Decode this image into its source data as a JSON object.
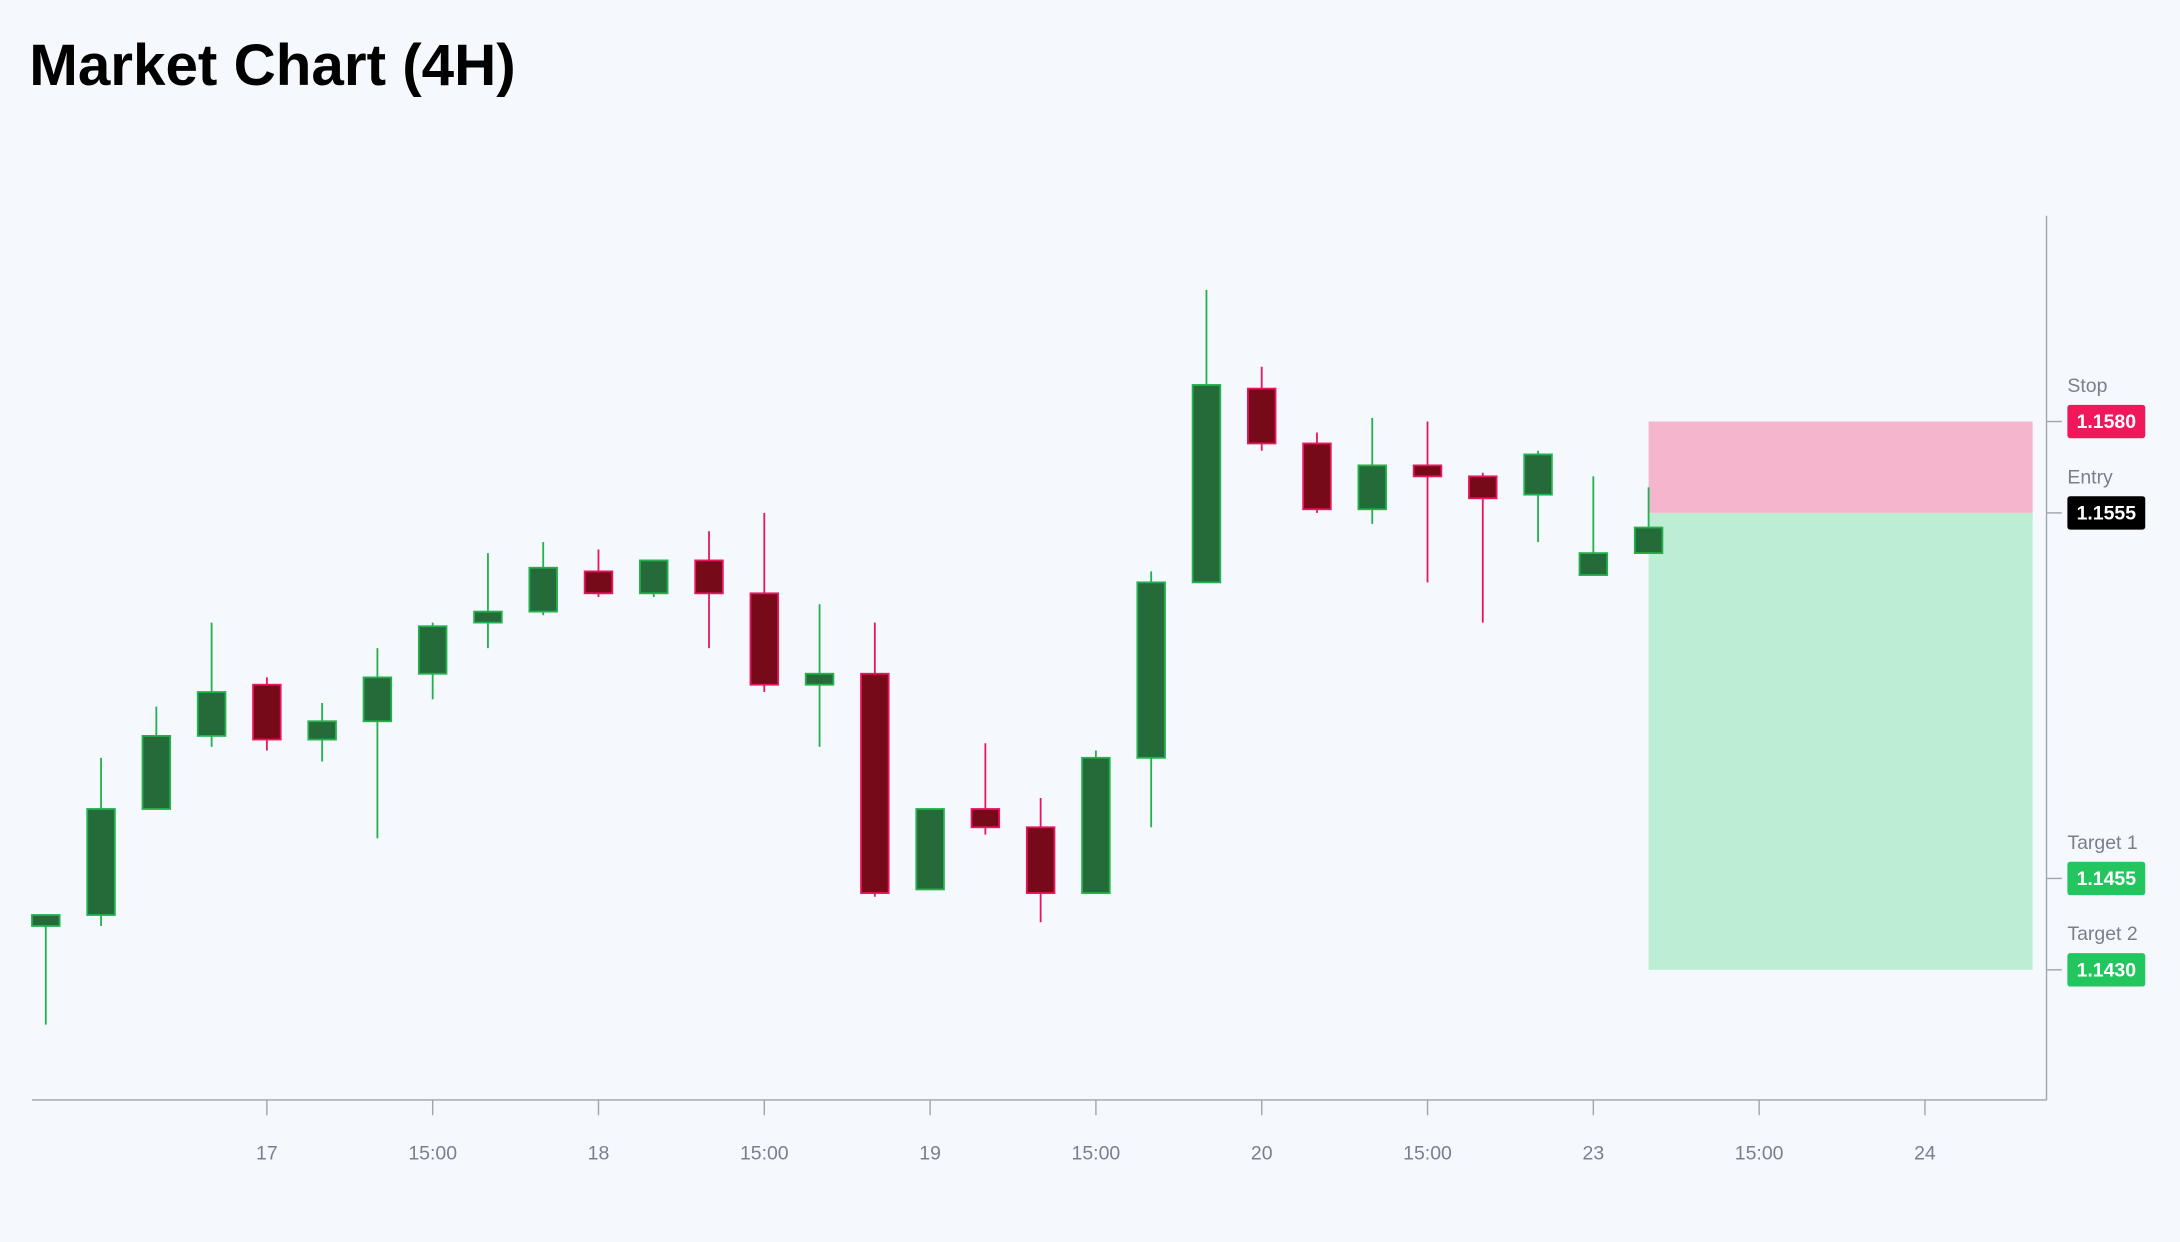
{
  "chart_data": {
    "type": "candlestick",
    "title": "Market Chart (4H)",
    "x": [
      0,
      1,
      2,
      3,
      4,
      5,
      6,
      7,
      8,
      9,
      10,
      11,
      12,
      13,
      14,
      15,
      16,
      17,
      18,
      19,
      20,
      21,
      22,
      23,
      24,
      25,
      26,
      27,
      28,
      29
    ],
    "open": [
      1.1442,
      1.1445,
      1.1474,
      1.1494,
      1.1508,
      1.1493,
      1.1498,
      1.1511,
      1.1525,
      1.1528,
      1.1539,
      1.1533,
      1.1542,
      1.1533,
      1.1508,
      1.1511,
      1.1452,
      1.1474,
      1.1469,
      1.1451,
      1.1488,
      1.1536,
      1.1589,
      1.1574,
      1.1556,
      1.1568,
      1.1565,
      1.156,
      1.1538,
      1.1544
    ],
    "high": [
      1.1445,
      1.1488,
      1.1502,
      1.1525,
      1.151,
      1.1503,
      1.1518,
      1.1525,
      1.1544,
      1.1547,
      1.1545,
      1.1542,
      1.155,
      1.1555,
      1.153,
      1.1525,
      1.1474,
      1.1492,
      1.1477,
      1.149,
      1.1539,
      1.1616,
      1.1595,
      1.1577,
      1.1581,
      1.158,
      1.1566,
      1.1572,
      1.1565,
      1.1562
    ],
    "low": [
      1.1415,
      1.1442,
      1.1474,
      1.1491,
      1.149,
      1.1487,
      1.1466,
      1.1504,
      1.1518,
      1.1527,
      1.1532,
      1.1532,
      1.1518,
      1.1506,
      1.1491,
      1.145,
      1.1452,
      1.1467,
      1.1443,
      1.1451,
      1.1469,
      1.1536,
      1.1572,
      1.1555,
      1.1552,
      1.1536,
      1.1525,
      1.1547,
      1.1538,
      1.1544
    ],
    "close": [
      1.1445,
      1.1474,
      1.1494,
      1.1506,
      1.1493,
      1.1498,
      1.151,
      1.1524,
      1.1528,
      1.154,
      1.1533,
      1.1542,
      1.1533,
      1.1508,
      1.1511,
      1.1451,
      1.1474,
      1.1469,
      1.1451,
      1.1488,
      1.1536,
      1.159,
      1.1574,
      1.1556,
      1.1568,
      1.1565,
      1.1559,
      1.1571,
      1.1544,
      1.1551
    ],
    "up_color": "#256b3a",
    "up_edge": "#22b14c",
    "down_color": "#760a18",
    "down_edge": "#e8175d",
    "xlim": [
      -0.25,
      36.2
    ],
    "xticks": [
      {
        "value": 4,
        "label": "17"
      },
      {
        "value": 7,
        "label": "15:00"
      },
      {
        "value": 10,
        "label": "18"
      },
      {
        "value": 13,
        "label": "15:00"
      },
      {
        "value": 16,
        "label": "19"
      },
      {
        "value": 19,
        "label": "15:00"
      },
      {
        "value": 22,
        "label": "20"
      },
      {
        "value": 25,
        "label": "15:00"
      },
      {
        "value": 28,
        "label": "23"
      },
      {
        "value": 31,
        "label": "15:00"
      },
      {
        "value": 34,
        "label": "24"
      }
    ],
    "ylim": [
      1.13944,
      1.16363
    ],
    "levels": [
      {
        "name": "Stop",
        "value": 1.158,
        "label": "1.1580",
        "color": "#f0175a"
      },
      {
        "name": "Entry",
        "value": 1.1555,
        "label": "1.1555",
        "color": "#000000"
      },
      {
        "name": "Target 1",
        "value": 1.1455,
        "label": "1.1455",
        "color": "#22c55e"
      },
      {
        "name": "Target 2",
        "value": 1.143,
        "label": "1.1430",
        "color": "#22c55e"
      }
    ],
    "stop_zone_color": "#f5b5cc",
    "target_zone_color": "#bdeed4"
  }
}
